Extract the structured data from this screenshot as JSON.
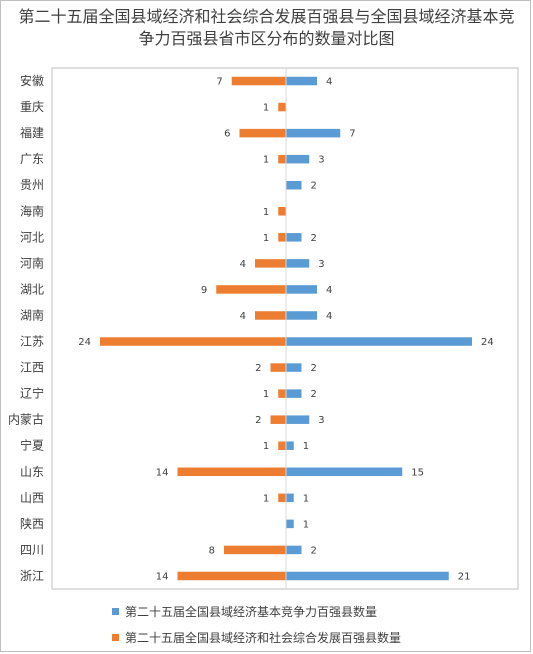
{
  "chart_data": {
    "type": "bar",
    "orientation": "horizontal-diverging",
    "title": [
      "第二十五届全国县域经济和社会综合发展百强县与全国县域经济基本竞",
      "争力百强县省市区分布的数量对比图"
    ],
    "categories": [
      "安徽",
      "重庆",
      "福建",
      "广东",
      "贵州",
      "海南",
      "河北",
      "河南",
      "湖北",
      "湖南",
      "江苏",
      "江西",
      "辽宁",
      "内蒙古",
      "宁夏",
      "山东",
      "山西",
      "陕西",
      "四川",
      "浙江"
    ],
    "series": [
      {
        "name": "第二十五届全国县域经济基本竞争力百强县数量",
        "color": "#5b9bd5",
        "side": "right",
        "values": [
          4,
          0,
          7,
          3,
          2,
          0,
          2,
          3,
          4,
          4,
          24,
          2,
          2,
          3,
          1,
          15,
          1,
          1,
          2,
          21
        ],
        "labels": [
          "4",
          "",
          "7",
          "3",
          "2",
          "",
          "2",
          "3",
          "4",
          "4",
          "24",
          "2",
          "2",
          "3",
          "1",
          "15",
          "1",
          "1",
          "2",
          "21"
        ]
      },
      {
        "name": "第二十五届全国县域经济和社会综合发展百强县数量",
        "color": "#ed7d31",
        "side": "left",
        "values": [
          7,
          1,
          6,
          1,
          0,
          1,
          1,
          4,
          9,
          4,
          24,
          2,
          1,
          2,
          1,
          14,
          1,
          0,
          8,
          14
        ],
        "labels": [
          "7",
          "1",
          "6",
          "1",
          "",
          "1",
          "1",
          "4",
          "9",
          "4",
          "24",
          "2",
          "1",
          "2",
          "1",
          "14",
          "1",
          "",
          "8",
          "14"
        ]
      }
    ],
    "xlim": [
      -24,
      24
    ],
    "grid": false,
    "legend_position": "bottom"
  }
}
